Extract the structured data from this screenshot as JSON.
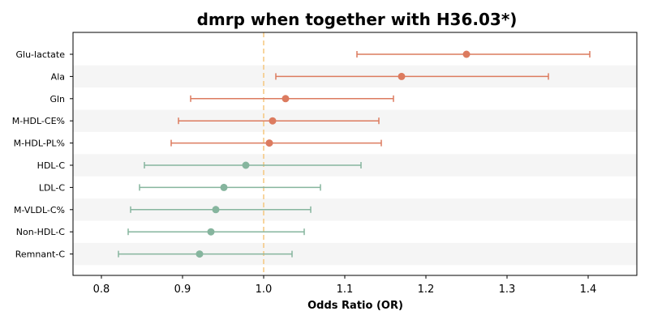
{
  "chart_data": {
    "type": "forest",
    "title": "dmrp when together with H36.03*)",
    "xlabel": "Odds Ratio (OR)",
    "xlim": [
      0.765,
      1.46
    ],
    "xticks": [
      0.8,
      0.9,
      1.0,
      1.1,
      1.2,
      1.3,
      1.4
    ],
    "xtick_labels": [
      "0.8",
      "0.9",
      "1.0",
      "1.1",
      "1.2",
      "1.3",
      "1.4"
    ],
    "reference_line": 1.0,
    "colors": {
      "positive": "#dc7b5f",
      "negative": "#86b59e",
      "reference": "#f5c77e",
      "band": "#f5f5f5"
    },
    "rows": [
      {
        "label": "Glu-lactate",
        "or": 1.25,
        "lower": 1.115,
        "upper": 1.402,
        "group": "positive"
      },
      {
        "label": "Ala",
        "or": 1.17,
        "lower": 1.015,
        "upper": 1.351,
        "group": "positive"
      },
      {
        "label": "Gln",
        "or": 1.027,
        "lower": 0.91,
        "upper": 1.16,
        "group": "positive"
      },
      {
        "label": "M-HDL-CE%",
        "or": 1.011,
        "lower": 0.895,
        "upper": 1.142,
        "group": "positive"
      },
      {
        "label": "M-HDL-PL%",
        "or": 1.007,
        "lower": 0.886,
        "upper": 1.145,
        "group": "positive"
      },
      {
        "label": "HDL-C",
        "or": 0.978,
        "lower": 0.853,
        "upper": 1.12,
        "group": "negative"
      },
      {
        "label": "LDL-C",
        "or": 0.951,
        "lower": 0.847,
        "upper": 1.07,
        "group": "negative"
      },
      {
        "label": "M-VLDL-C%",
        "or": 0.941,
        "lower": 0.836,
        "upper": 1.058,
        "group": "negative"
      },
      {
        "label": "Non-HDL-C",
        "or": 0.935,
        "lower": 0.833,
        "upper": 1.05,
        "group": "negative"
      },
      {
        "label": "Remnant-C",
        "or": 0.921,
        "lower": 0.821,
        "upper": 1.035,
        "group": "negative"
      }
    ]
  }
}
